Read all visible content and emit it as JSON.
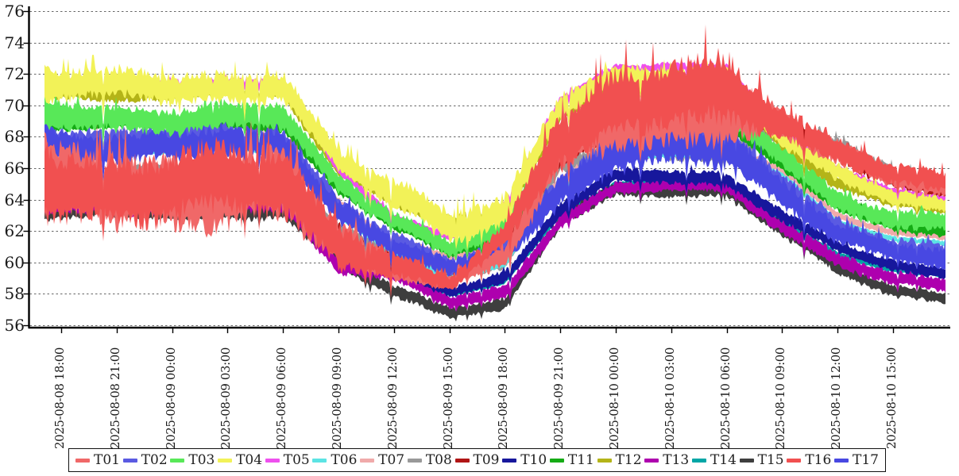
{
  "chart_data": {
    "type": "area",
    "title": "",
    "description": "17 overlapping high-frequency noisy temperature traces (T01-T17) drawn as fuzzy bands over 48 hours; values and band_halfwidth are sampled at each x tick.",
    "grid": true,
    "legend_position": "bottom",
    "colors": {
      "background": "#ffffff",
      "grid": "#666666",
      "axis": "#000000",
      "tick_label": "#1a1a1a"
    },
    "x_axis": {
      "tick_interval": "3 hours",
      "tick_labels": [
        "2025-08-08 18:00",
        "2025-08-08 21:00",
        "2025-08-09 00:00",
        "2025-08-09 03:00",
        "2025-08-09 06:00",
        "2025-08-09 09:00",
        "2025-08-09 12:00",
        "2025-08-09 15:00",
        "2025-08-09 18:00",
        "2025-08-09 21:00",
        "2025-08-10 00:00",
        "2025-08-10 03:00",
        "2025-08-10 06:00",
        "2025-08-10 09:00",
        "2025-08-10 12:00",
        "2025-08-10 15:00"
      ]
    },
    "y_axis": {
      "tick_labels": [
        56,
        58,
        60,
        62,
        64,
        66,
        68,
        70,
        72,
        74,
        76
      ],
      "range_shown": [
        54.9,
        76.4
      ]
    },
    "draw_order": [
      "T08",
      "T09",
      "T12",
      "T06",
      "T07",
      "T14",
      "T05",
      "T11",
      "T15",
      "T13",
      "T10",
      "T02",
      "T17",
      "T03",
      "T04",
      "T01",
      "T16"
    ],
    "series": [
      {
        "name": "T01",
        "color": "#f06868",
        "values": [
          64.7,
          64.7,
          64.7,
          64.8,
          64.7,
          61.2,
          59.8,
          58.8,
          60.4,
          67.0,
          69.5,
          69.6,
          69.6,
          68.6,
          67.1,
          65.5
        ],
        "band_halfwidth": [
          2.4,
          2.4,
          2.4,
          2.4,
          2.4,
          1.4,
          0.85,
          0.45,
          0.7,
          1.8,
          2.0,
          2.0,
          2.0,
          1.0,
          0.8,
          0.7
        ]
      },
      {
        "name": "T02",
        "color": "#5a5ae2",
        "values": [
          67.8,
          67.8,
          67.8,
          67.9,
          67.8,
          63.7,
          61.4,
          59.7,
          60.85,
          65.0,
          67.6,
          67.7,
          67.6,
          65.2,
          62.3,
          60.9
        ],
        "band_halfwidth": [
          0.8,
          0.8,
          0.8,
          0.8,
          0.8,
          0.7,
          0.6,
          0.55,
          0.6,
          0.9,
          1.0,
          1.0,
          1.0,
          0.8,
          0.7,
          0.65
        ]
      },
      {
        "name": "T03",
        "color": "#58e858",
        "values": [
          69.2,
          69.2,
          69.2,
          69.3,
          69.2,
          65.0,
          62.9,
          60.9,
          62.15,
          67.8,
          69.2,
          69.3,
          69.2,
          66.8,
          63.9,
          62.9
        ],
        "band_halfwidth": [
          0.85,
          0.85,
          0.85,
          0.85,
          0.85,
          0.7,
          0.6,
          0.6,
          0.65,
          0.8,
          0.8,
          0.8,
          0.8,
          0.7,
          0.7,
          0.65
        ]
      },
      {
        "name": "T04",
        "color": "#f2f258",
        "values": [
          71.2,
          71.2,
          71.2,
          71.3,
          71.2,
          66.3,
          64.4,
          62.6,
          63.3,
          69.8,
          71.8,
          71.9,
          71.8,
          67.8,
          65.6,
          64.2
        ],
        "band_halfwidth": [
          1.0,
          1.0,
          1.0,
          1.0,
          1.0,
          0.8,
          1.0,
          1.1,
          1.1,
          0.9,
          0.7,
          0.7,
          0.7,
          0.6,
          0.6,
          0.55
        ]
      },
      {
        "name": "T05",
        "color": "#ee50ee",
        "values": [
          71.4,
          71.4,
          71.4,
          71.5,
          71.4,
          65.9,
          62.9,
          61.7,
          63.6,
          70.3,
          72.4,
          72.5,
          72.4,
          68.2,
          66.0,
          64.5
        ],
        "band_halfwidth": [
          0.3,
          0.3,
          0.3,
          0.3,
          0.3,
          0.3,
          0.3,
          0.3,
          0.3,
          0.3,
          0.3,
          0.3,
          0.3,
          0.3,
          0.3,
          0.3
        ]
      },
      {
        "name": "T06",
        "color": "#5ce4e4",
        "values": [
          67.1,
          67.1,
          67.1,
          67.2,
          67.1,
          63.0,
          60.7,
          59.0,
          59.8,
          64.9,
          66.8,
          66.9,
          66.8,
          65.6,
          62.6,
          61.55
        ],
        "band_halfwidth": [
          0.2,
          0.2,
          0.2,
          0.2,
          0.2,
          0.2,
          0.2,
          0.2,
          0.2,
          0.2,
          0.2,
          0.2,
          0.2,
          0.2,
          0.2,
          0.2
        ]
      },
      {
        "name": "T07",
        "color": "#f0aaaa",
        "values": [
          67.7,
          67.7,
          67.7,
          67.8,
          67.7,
          63.9,
          61.5,
          60.35,
          61.0,
          65.3,
          67.3,
          67.4,
          67.3,
          65.9,
          63.0,
          61.95
        ],
        "band_halfwidth": [
          0.25,
          0.25,
          0.25,
          0.25,
          0.25,
          0.25,
          0.25,
          0.25,
          0.25,
          0.25,
          0.25,
          0.25,
          0.25,
          0.25,
          0.25,
          0.25
        ]
      },
      {
        "name": "T08",
        "color": "#999999",
        "values": [
          65.6,
          65.6,
          65.6,
          65.7,
          65.6,
          62.0,
          60.2,
          59.3,
          60.3,
          66.3,
          66.9,
          67.0,
          66.9,
          68.5,
          67.3,
          65.4
        ],
        "band_halfwidth": [
          0.6,
          0.6,
          0.6,
          0.6,
          0.6,
          0.6,
          0.6,
          0.6,
          0.6,
          0.6,
          0.6,
          0.6,
          0.6,
          0.6,
          0.6,
          0.6
        ]
      },
      {
        "name": "T09",
        "color": "#b01515",
        "values": [
          65.2,
          65.2,
          65.2,
          65.3,
          65.2,
          61.5,
          60.0,
          58.9,
          61.3,
          66.5,
          68.5,
          68.6,
          68.5,
          68.8,
          67.0,
          65.3
        ],
        "band_halfwidth": [
          0.6,
          0.6,
          0.6,
          0.6,
          0.6,
          0.6,
          0.6,
          0.6,
          0.6,
          0.6,
          0.6,
          0.6,
          0.6,
          0.6,
          0.6,
          0.6
        ]
      },
      {
        "name": "T10",
        "color": "#17179c",
        "values": [
          65.3,
          65.3,
          65.3,
          65.4,
          65.3,
          61.6,
          59.4,
          58.2,
          59.1,
          63.4,
          65.4,
          65.5,
          65.4,
          63.0,
          60.9,
          59.75
        ],
        "band_halfwidth": [
          0.5,
          0.5,
          0.5,
          0.5,
          0.5,
          0.45,
          0.4,
          0.35,
          0.45,
          0.5,
          0.5,
          0.5,
          0.5,
          0.45,
          0.4,
          0.4
        ]
      },
      {
        "name": "T11",
        "color": "#15ab15",
        "values": [
          68.8,
          68.8,
          68.8,
          68.9,
          68.8,
          64.6,
          62.5,
          60.7,
          61.75,
          67.3,
          68.8,
          68.9,
          68.8,
          66.3,
          63.5,
          62.4
        ],
        "band_halfwidth": [
          0.45,
          0.45,
          0.45,
          0.45,
          0.45,
          0.45,
          0.45,
          0.45,
          0.45,
          0.45,
          0.45,
          0.45,
          0.45,
          0.45,
          0.45,
          0.45
        ]
      },
      {
        "name": "T12",
        "color": "#b4b418",
        "values": [
          70.8,
          70.8,
          70.8,
          70.9,
          70.8,
          66.0,
          64.1,
          62.5,
          63.0,
          69.4,
          71.5,
          71.6,
          71.5,
          67.4,
          65.2,
          63.9
        ],
        "band_halfwidth": [
          0.5,
          0.5,
          0.5,
          0.5,
          0.5,
          0.5,
          0.5,
          0.5,
          0.5,
          0.5,
          0.5,
          0.5,
          0.5,
          0.5,
          0.5,
          0.5
        ]
      },
      {
        "name": "T13",
        "color": "#ae00ae",
        "values": [
          63.7,
          63.7,
          63.7,
          63.8,
          63.7,
          59.9,
          59.3,
          57.45,
          58.0,
          62.7,
          64.8,
          64.9,
          64.8,
          62.3,
          60.3,
          58.95
        ],
        "band_halfwidth": [
          0.6,
          0.6,
          0.6,
          0.6,
          0.6,
          0.5,
          0.5,
          0.45,
          0.5,
          0.5,
          0.45,
          0.45,
          0.45,
          0.5,
          0.5,
          0.5
        ]
      },
      {
        "name": "T14",
        "color": "#00a6a6",
        "values": [
          65.0,
          65.0,
          65.0,
          65.1,
          65.0,
          60.3,
          59.1,
          57.95,
          58.8,
          63.1,
          65.0,
          65.1,
          65.0,
          62.7,
          60.5,
          59.5
        ],
        "band_halfwidth": [
          0.2,
          0.2,
          0.2,
          0.2,
          0.2,
          0.2,
          0.2,
          0.2,
          0.2,
          0.2,
          0.2,
          0.2,
          0.2,
          0.2,
          0.2,
          0.2
        ]
      },
      {
        "name": "T15",
        "color": "#3e3e3e",
        "values": [
          63.2,
          63.2,
          63.2,
          63.3,
          63.2,
          60.0,
          58.2,
          56.95,
          57.3,
          62.6,
          64.6,
          64.7,
          64.6,
          62.0,
          59.6,
          58.25
        ],
        "band_halfwidth": [
          0.5,
          0.5,
          0.5,
          0.5,
          0.5,
          0.5,
          0.45,
          0.4,
          0.4,
          0.5,
          0.45,
          0.45,
          0.45,
          0.5,
          0.45,
          0.4
        ]
      },
      {
        "name": "T16",
        "color": "#f15050",
        "values": [
          64.9,
          64.9,
          64.9,
          65.0,
          64.9,
          61.4,
          59.9,
          58.6,
          61.6,
          68.3,
          70.4,
          70.5,
          70.6,
          69.0,
          67.3,
          65.6
        ],
        "band_halfwidth": [
          2.2,
          2.2,
          2.2,
          2.2,
          2.2,
          1.5,
          0.9,
          0.5,
          0.75,
          2.0,
          2.2,
          2.2,
          2.3,
          1.1,
          0.9,
          0.75
        ]
      },
      {
        "name": "T17",
        "color": "#4848e2",
        "values": [
          67.4,
          67.4,
          67.4,
          67.5,
          67.4,
          63.4,
          61.1,
          59.5,
          60.6,
          64.7,
          67.2,
          67.3,
          67.2,
          64.6,
          62.0,
          60.6
        ],
        "band_halfwidth": [
          1.0,
          1.0,
          1.0,
          1.0,
          1.0,
          0.8,
          0.65,
          0.6,
          0.65,
          1.1,
          1.3,
          1.3,
          1.3,
          1.0,
          0.75,
          0.7
        ]
      }
    ]
  }
}
